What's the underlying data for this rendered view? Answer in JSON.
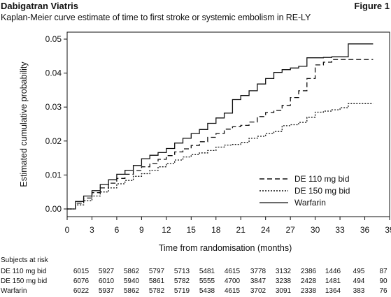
{
  "header": {
    "drug": "Dabigatran Viatris",
    "figure": "Figure 1",
    "subtitle": "Kaplan-Meier curve estimate of time to first stroke or systemic embolism in RE-LY"
  },
  "chart_data": {
    "type": "line",
    "title": "Kaplan-Meier curve estimate of time to first stroke or systemic embolism in RE-LY",
    "xlabel": "Time from randomisation (months)",
    "ylabel": "Estimated cumulative probability",
    "xlim": [
      0,
      39
    ],
    "ylim": [
      0,
      0.05
    ],
    "xticks": [
      "0",
      "3",
      "6",
      "9",
      "12",
      "15",
      "18",
      "21",
      "24",
      "27",
      "30",
      "33",
      "36",
      "39"
    ],
    "yticks": [
      "0.00",
      "0.01",
      "0.02",
      "0.03",
      "0.04",
      "0.05"
    ],
    "legend_position": "bottom-right",
    "series": [
      {
        "name": "DE 110 mg bid",
        "style": "dashed",
        "x": [
          0,
          1,
          2,
          3,
          4,
          5,
          6,
          7,
          8,
          9,
          10,
          11,
          12,
          13,
          14,
          15,
          16,
          17,
          18,
          19,
          20,
          21,
          22,
          23,
          24,
          25,
          26,
          27,
          28,
          29,
          30,
          31,
          32,
          33,
          34,
          37
        ],
        "y": [
          0,
          0.0017,
          0.0032,
          0.0048,
          0.0062,
          0.0076,
          0.009,
          0.0102,
          0.0113,
          0.0124,
          0.0134,
          0.0146,
          0.0157,
          0.0168,
          0.0177,
          0.0187,
          0.0198,
          0.0211,
          0.0222,
          0.0235,
          0.0242,
          0.0246,
          0.0256,
          0.0272,
          0.0284,
          0.029,
          0.0305,
          0.0328,
          0.0348,
          0.0384,
          0.0424,
          0.0432,
          0.044,
          0.044,
          0.044,
          0.044
        ]
      },
      {
        "name": "DE 150 mg bid",
        "style": "dotted",
        "x": [
          0,
          1,
          2,
          3,
          4,
          5,
          6,
          7,
          8,
          9,
          10,
          11,
          12,
          13,
          14,
          15,
          16,
          17,
          18,
          19,
          20,
          21,
          22,
          23,
          24,
          25,
          26,
          27,
          28,
          29,
          30,
          31,
          32,
          33,
          34,
          37
        ],
        "y": [
          0,
          0.0012,
          0.0024,
          0.0038,
          0.005,
          0.0062,
          0.0074,
          0.0084,
          0.0096,
          0.0104,
          0.0114,
          0.0124,
          0.0134,
          0.0144,
          0.0153,
          0.016,
          0.0165,
          0.0172,
          0.0182,
          0.0188,
          0.019,
          0.0196,
          0.0208,
          0.0214,
          0.0222,
          0.0228,
          0.0245,
          0.0248,
          0.0255,
          0.027,
          0.0285,
          0.0288,
          0.0292,
          0.0298,
          0.031,
          0.031
        ]
      },
      {
        "name": "Warfarin",
        "style": "solid",
        "x": [
          0,
          1,
          2,
          3,
          4,
          5,
          6,
          7,
          8,
          9,
          10,
          11,
          12,
          13,
          14,
          15,
          16,
          17,
          18,
          19,
          20,
          21,
          22,
          23,
          24,
          25,
          26,
          27,
          28,
          29,
          30,
          31,
          32,
          33,
          33.8,
          34,
          37
        ],
        "y": [
          0,
          0.0022,
          0.0038,
          0.0054,
          0.0072,
          0.0086,
          0.0102,
          0.0114,
          0.0128,
          0.0148,
          0.0158,
          0.0166,
          0.0178,
          0.0194,
          0.0208,
          0.0222,
          0.0234,
          0.0252,
          0.0268,
          0.0282,
          0.0322,
          0.0334,
          0.0348,
          0.0368,
          0.0384,
          0.0402,
          0.041,
          0.0415,
          0.042,
          0.0445,
          0.0445,
          0.0446,
          0.0448,
          0.0448,
          0.0448,
          0.0486,
          0.0486
        ]
      }
    ]
  },
  "risk_table": {
    "title": "Subjects at risk",
    "rows": [
      {
        "label": "DE 110 mg bid",
        "values": [
          "6015",
          "5927",
          "5862",
          "5797",
          "5713",
          "5481",
          "4615",
          "3778",
          "3132",
          "2386",
          "1446",
          "495",
          "87"
        ]
      },
      {
        "label": "DE 150 mg bid",
        "values": [
          "6076",
          "6010",
          "5940",
          "5861",
          "5782",
          "5555",
          "4700",
          "3847",
          "3238",
          "2428",
          "1481",
          "494",
          "90"
        ]
      },
      {
        "label": "Warfarin",
        "values": [
          "6022",
          "5937",
          "5862",
          "5782",
          "5719",
          "5438",
          "4615",
          "3702",
          "3091",
          "2338",
          "1364",
          "383",
          "76"
        ]
      }
    ]
  }
}
